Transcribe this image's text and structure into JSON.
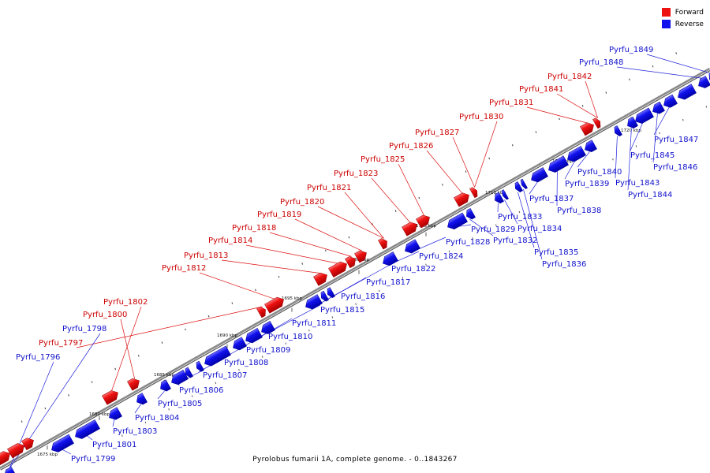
{
  "legend": {
    "forward_label": "Forward",
    "reverse_label": "Reverse",
    "forward_color": "#ee1111",
    "reverse_color": "#1111ee"
  },
  "caption": "Pyrolobus fumarii 1A, complete genome. - 0..1843267",
  "ticks": [
    "1675 kbp",
    "1680 kbp",
    "1685 kbp",
    "1690 kbp",
    "1695 kbp",
    "1700 kbp",
    "1705 kbp",
    "1710 kbp",
    "1715 kbp",
    "1720 kbp"
  ],
  "forward_genes": [
    "Pyrfu_1797",
    "Pyrfu_1800",
    "Pyrfu_1802",
    "Pyrfu_1812",
    "Pyrfu_1813",
    "Pyrfu_1814",
    "Pyrfu_1818",
    "Pyrfu_1819",
    "Pyrfu_1820",
    "Pyrfu_1821",
    "Pyrfu_1823",
    "Pyrfu_1825",
    "Pyrfu_1826",
    "Pyrfu_1827",
    "Pyrfu_1830",
    "Pyrfu_1831",
    "Pyrfu_1841",
    "Pyrfu_1842"
  ],
  "reverse_genes": [
    "Pyrfu_1796",
    "Pyrfu_1798",
    "Pyrfu_1799",
    "Pyrfu_1801",
    "Pyrfu_1803",
    "Pyrfu_1804",
    "Pyrfu_1805",
    "Pyrfu_1806",
    "Pyrfu_1807",
    "Pyrfu_1808",
    "Pyrfu_1809",
    "Pyrfu_1810",
    "Pyrfu_1811",
    "Pyrfu_1815",
    "Pyrfu_1816",
    "Pyrfu_1817",
    "Pyrfu_1822",
    "Pyrfu_1824",
    "Pyrfu_1828",
    "Pyrfu_1829",
    "Pyrfu_1832",
    "Pyrfu_1833",
    "Pyrfu_1834",
    "Pyrfu_1835",
    "Pyrfu_1836",
    "Pyrfu_1837",
    "Pyrfu_1838",
    "Pyrfu_1839",
    "Pyrfu_1840",
    "Pyrfu_1843",
    "Pyrfu_1844",
    "Pyrfu_1845",
    "Pyrfu_1846",
    "Pyrfu_1847",
    "Pyrfu_1848",
    "Pyrfu_1849"
  ]
}
